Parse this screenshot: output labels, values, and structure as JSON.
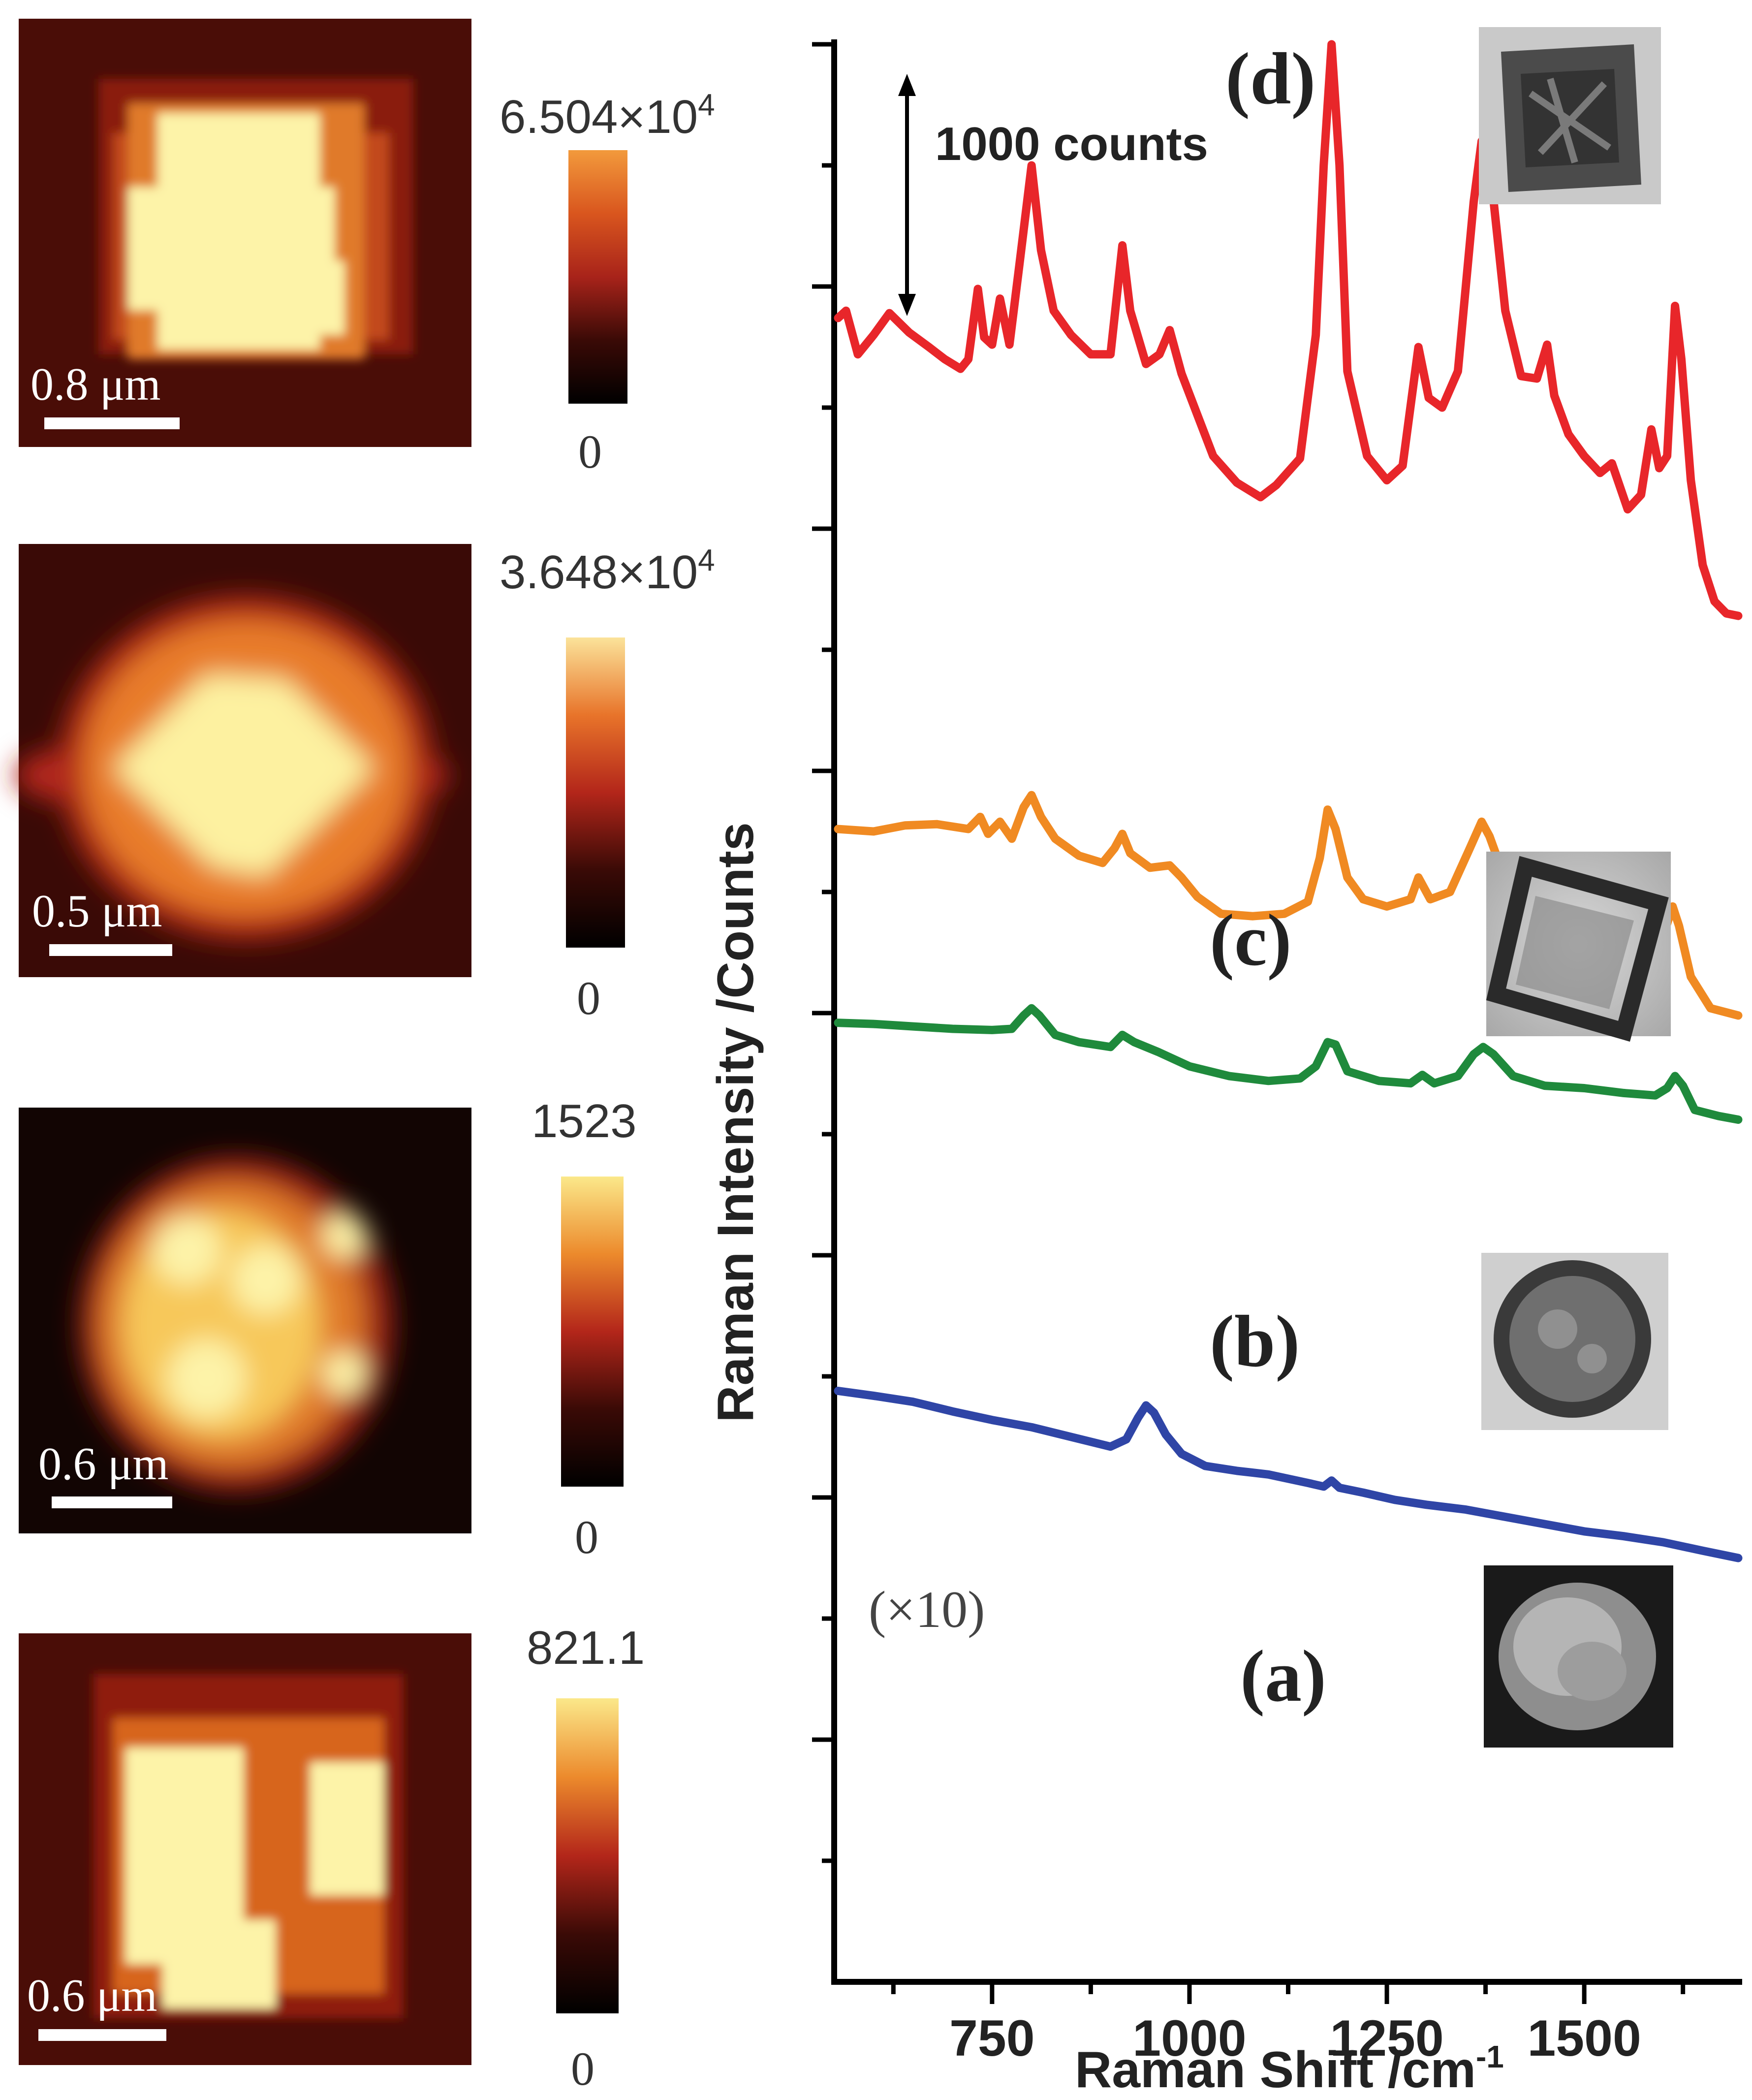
{
  "maps": [
    {
      "scale_label": "0.8 μm",
      "cbar_max": "6.504×10",
      "cbar_max_exp": "4",
      "cbar_min": "0",
      "cmap_top": "#f29a3c"
    },
    {
      "scale_label": "0.5 μm",
      "cbar_max": "3.648×10",
      "cbar_max_exp": "4",
      "cbar_min": "0",
      "cmap_top": "#fbe39a"
    },
    {
      "scale_label": "0.6 μm",
      "cbar_max": "1523",
      "cbar_max_exp": "",
      "cbar_min": "0",
      "cmap_top": "#fbe88a"
    },
    {
      "scale_label": "0.6 μm",
      "cbar_max": "821.1",
      "cbar_max_exp": "",
      "cbar_min": "0",
      "cmap_top": "#fbe88a"
    }
  ],
  "chart_data": {
    "type": "line",
    "title": "",
    "xlabel": "Raman Shift /cm",
    "xlabel_sup": "-1",
    "ylabel": "Raman Intensity /Counts",
    "xlim": [
      550,
      1700
    ],
    "ylim": [
      0,
      8000
    ],
    "x_ticks": [
      750,
      1000,
      1250,
      1500
    ],
    "y_tick_step": 500,
    "scale_bar_label": "1000 counts",
    "scale_bar_counts": 1000,
    "annotation_x10": "(×10)",
    "series": [
      {
        "name": "(a)",
        "color": "#2f45a6",
        "points": [
          [
            555,
            2440
          ],
          [
            600,
            2420
          ],
          [
            650,
            2395
          ],
          [
            700,
            2355
          ],
          [
            750,
            2320
          ],
          [
            800,
            2290
          ],
          [
            850,
            2250
          ],
          [
            900,
            2210
          ],
          [
            920,
            2240
          ],
          [
            935,
            2330
          ],
          [
            945,
            2380
          ],
          [
            955,
            2350
          ],
          [
            970,
            2260
          ],
          [
            990,
            2180
          ],
          [
            1020,
            2130
          ],
          [
            1060,
            2110
          ],
          [
            1100,
            2095
          ],
          [
            1150,
            2060
          ],
          [
            1170,
            2045
          ],
          [
            1180,
            2070
          ],
          [
            1190,
            2040
          ],
          [
            1220,
            2020
          ],
          [
            1260,
            1990
          ],
          [
            1300,
            1970
          ],
          [
            1350,
            1950
          ],
          [
            1400,
            1920
          ],
          [
            1450,
            1890
          ],
          [
            1500,
            1860
          ],
          [
            1550,
            1840
          ],
          [
            1600,
            1815
          ],
          [
            1650,
            1780
          ],
          [
            1695,
            1750
          ]
        ]
      },
      {
        "name": "(b)",
        "color": "#1f8a3c",
        "points": [
          [
            555,
            3960
          ],
          [
            600,
            3955
          ],
          [
            650,
            3945
          ],
          [
            700,
            3935
          ],
          [
            750,
            3930
          ],
          [
            775,
            3935
          ],
          [
            790,
            3990
          ],
          [
            800,
            4020
          ],
          [
            810,
            3990
          ],
          [
            830,
            3910
          ],
          [
            860,
            3880
          ],
          [
            900,
            3860
          ],
          [
            915,
            3910
          ],
          [
            930,
            3880
          ],
          [
            960,
            3840
          ],
          [
            1000,
            3780
          ],
          [
            1050,
            3740
          ],
          [
            1100,
            3720
          ],
          [
            1140,
            3730
          ],
          [
            1160,
            3780
          ],
          [
            1175,
            3880
          ],
          [
            1185,
            3870
          ],
          [
            1200,
            3760
          ],
          [
            1240,
            3720
          ],
          [
            1280,
            3710
          ],
          [
            1295,
            3745
          ],
          [
            1310,
            3710
          ],
          [
            1340,
            3740
          ],
          [
            1360,
            3830
          ],
          [
            1372,
            3860
          ],
          [
            1385,
            3830
          ],
          [
            1410,
            3740
          ],
          [
            1450,
            3700
          ],
          [
            1500,
            3690
          ],
          [
            1550,
            3670
          ],
          [
            1590,
            3660
          ],
          [
            1605,
            3690
          ],
          [
            1615,
            3740
          ],
          [
            1625,
            3700
          ],
          [
            1640,
            3600
          ],
          [
            1670,
            3575
          ],
          [
            1695,
            3560
          ]
        ]
      },
      {
        "name": "(c)",
        "color": "#f08a22",
        "points": [
          [
            555,
            4760
          ],
          [
            600,
            4750
          ],
          [
            640,
            4775
          ],
          [
            680,
            4780
          ],
          [
            720,
            4760
          ],
          [
            735,
            4810
          ],
          [
            745,
            4740
          ],
          [
            760,
            4790
          ],
          [
            775,
            4720
          ],
          [
            790,
            4850
          ],
          [
            800,
            4900
          ],
          [
            812,
            4810
          ],
          [
            830,
            4720
          ],
          [
            860,
            4650
          ],
          [
            890,
            4620
          ],
          [
            905,
            4680
          ],
          [
            915,
            4740
          ],
          [
            925,
            4660
          ],
          [
            950,
            4600
          ],
          [
            975,
            4610
          ],
          [
            990,
            4560
          ],
          [
            1010,
            4480
          ],
          [
            1040,
            4410
          ],
          [
            1080,
            4400
          ],
          [
            1120,
            4410
          ],
          [
            1150,
            4460
          ],
          [
            1165,
            4640
          ],
          [
            1175,
            4840
          ],
          [
            1185,
            4760
          ],
          [
            1200,
            4560
          ],
          [
            1220,
            4470
          ],
          [
            1250,
            4440
          ],
          [
            1280,
            4470
          ],
          [
            1290,
            4560
          ],
          [
            1305,
            4470
          ],
          [
            1330,
            4500
          ],
          [
            1355,
            4680
          ],
          [
            1370,
            4790
          ],
          [
            1380,
            4730
          ],
          [
            1400,
            4550
          ],
          [
            1430,
            4450
          ],
          [
            1460,
            4400
          ],
          [
            1490,
            4340
          ],
          [
            1520,
            4270
          ],
          [
            1540,
            4270
          ],
          [
            1560,
            4290
          ],
          [
            1580,
            4340
          ],
          [
            1590,
            4290
          ],
          [
            1600,
            4320
          ],
          [
            1612,
            4440
          ],
          [
            1620,
            4360
          ],
          [
            1635,
            4150
          ],
          [
            1660,
            4020
          ],
          [
            1695,
            3990
          ]
        ]
      },
      {
        "name": "(d)",
        "color": "#e8262a",
        "points": [
          [
            555,
            6870
          ],
          [
            565,
            6900
          ],
          [
            580,
            6720
          ],
          [
            600,
            6800
          ],
          [
            620,
            6890
          ],
          [
            645,
            6810
          ],
          [
            670,
            6750
          ],
          [
            690,
            6700
          ],
          [
            710,
            6660
          ],
          [
            720,
            6700
          ],
          [
            732,
            6990
          ],
          [
            740,
            6790
          ],
          [
            750,
            6760
          ],
          [
            760,
            6950
          ],
          [
            772,
            6760
          ],
          [
            785,
            7100
          ],
          [
            800,
            7500
          ],
          [
            812,
            7150
          ],
          [
            828,
            6900
          ],
          [
            850,
            6800
          ],
          [
            875,
            6720
          ],
          [
            900,
            6720
          ],
          [
            915,
            7170
          ],
          [
            925,
            6900
          ],
          [
            945,
            6680
          ],
          [
            962,
            6720
          ],
          [
            975,
            6820
          ],
          [
            990,
            6640
          ],
          [
            1010,
            6470
          ],
          [
            1030,
            6300
          ],
          [
            1060,
            6190
          ],
          [
            1090,
            6130
          ],
          [
            1110,
            6180
          ],
          [
            1140,
            6290
          ],
          [
            1160,
            6800
          ],
          [
            1170,
            7500
          ],
          [
            1180,
            8000
          ],
          [
            1190,
            7500
          ],
          [
            1200,
            6650
          ],
          [
            1225,
            6300
          ],
          [
            1250,
            6200
          ],
          [
            1270,
            6260
          ],
          [
            1290,
            6750
          ],
          [
            1303,
            6540
          ],
          [
            1320,
            6500
          ],
          [
            1340,
            6650
          ],
          [
            1360,
            7350
          ],
          [
            1370,
            7600
          ],
          [
            1382,
            7450
          ],
          [
            1400,
            6900
          ],
          [
            1420,
            6630
          ],
          [
            1440,
            6620
          ],
          [
            1453,
            6760
          ],
          [
            1462,
            6550
          ],
          [
            1480,
            6390
          ],
          [
            1500,
            6300
          ],
          [
            1520,
            6230
          ],
          [
            1535,
            6270
          ],
          [
            1555,
            6080
          ],
          [
            1572,
            6140
          ],
          [
            1585,
            6410
          ],
          [
            1595,
            6250
          ],
          [
            1605,
            6300
          ],
          [
            1615,
            6920
          ],
          [
            1623,
            6700
          ],
          [
            1635,
            6200
          ],
          [
            1650,
            5850
          ],
          [
            1665,
            5700
          ],
          [
            1680,
            5650
          ],
          [
            1695,
            5640
          ]
        ]
      }
    ],
    "curve_labels": [
      "(a)",
      "(b)",
      "(c)",
      "(d)"
    ]
  }
}
